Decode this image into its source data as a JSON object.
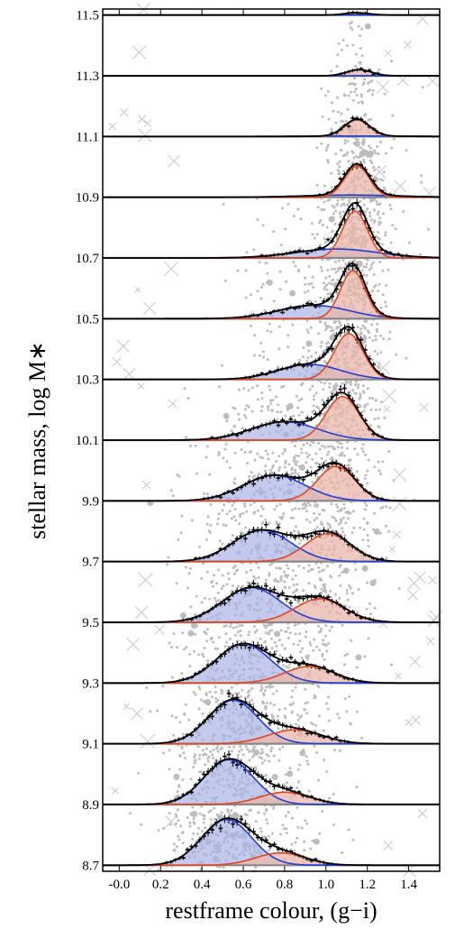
{
  "chart_data": {
    "type": "area",
    "xlabel": "restframe colour, (g−i)",
    "ylabel": "stellar mass, log M∗",
    "xlim": [
      -0.08,
      1.55
    ],
    "ylim": [
      8.68,
      11.52
    ],
    "x_ticks": [
      "-0.0",
      "0.2",
      "0.4",
      "0.6",
      "0.8",
      "1.0",
      "1.2",
      "1.4"
    ],
    "x_tick_values": [
      0.0,
      0.2,
      0.4,
      0.6,
      0.8,
      1.0,
      1.2,
      1.4
    ],
    "y_ticks": [
      "8.7",
      "8.9",
      "9.1",
      "9.3",
      "9.5",
      "9.7",
      "9.9",
      "10.1",
      "10.3",
      "10.5",
      "10.7",
      "10.9",
      "11.1",
      "11.3",
      "11.5"
    ],
    "y_tick_values": [
      8.7,
      8.9,
      9.1,
      9.3,
      9.5,
      9.7,
      9.9,
      10.1,
      10.3,
      10.5,
      10.7,
      10.9,
      11.1,
      11.3,
      11.5
    ],
    "colors": {
      "blue_population": "#1f3fd6",
      "red_population": "#e8431f",
      "total_fit": "#000000",
      "blue_fill": "#aab3e6",
      "red_fill": "#eab7aa",
      "scatter_points": "#bdbdbd",
      "baseline": "#888888"
    },
    "mass_bins": [
      {
        "base": 8.7,
        "blue": {
          "mu": 0.52,
          "sigma": 0.12,
          "amp": 0.82
        },
        "red": {
          "mu": 0.78,
          "sigma": 0.12,
          "amp": 0.22
        }
      },
      {
        "base": 8.9,
        "blue": {
          "mu": 0.53,
          "sigma": 0.12,
          "amp": 0.8
        },
        "red": {
          "mu": 0.8,
          "sigma": 0.12,
          "amp": 0.22
        }
      },
      {
        "base": 9.1,
        "blue": {
          "mu": 0.55,
          "sigma": 0.12,
          "amp": 0.78
        },
        "red": {
          "mu": 0.85,
          "sigma": 0.13,
          "amp": 0.25
        }
      },
      {
        "base": 9.3,
        "blue": {
          "mu": 0.6,
          "sigma": 0.13,
          "amp": 0.7
        },
        "red": {
          "mu": 0.92,
          "sigma": 0.12,
          "amp": 0.3
        }
      },
      {
        "base": 9.5,
        "blue": {
          "mu": 0.64,
          "sigma": 0.14,
          "amp": 0.62
        },
        "red": {
          "mu": 0.97,
          "sigma": 0.12,
          "amp": 0.42
        }
      },
      {
        "base": 9.7,
        "blue": {
          "mu": 0.69,
          "sigma": 0.14,
          "amp": 0.56
        },
        "red": {
          "mu": 1.01,
          "sigma": 0.11,
          "amp": 0.5
        }
      },
      {
        "base": 9.9,
        "blue": {
          "mu": 0.75,
          "sigma": 0.15,
          "amp": 0.46
        },
        "red": {
          "mu": 1.05,
          "sigma": 0.09,
          "amp": 0.62
        }
      },
      {
        "base": 10.1,
        "blue": {
          "mu": 0.8,
          "sigma": 0.16,
          "amp": 0.33
        },
        "red": {
          "mu": 1.08,
          "sigma": 0.08,
          "amp": 0.78
        }
      },
      {
        "base": 10.3,
        "blue": {
          "mu": 0.92,
          "sigma": 0.15,
          "amp": 0.27
        },
        "red": {
          "mu": 1.11,
          "sigma": 0.07,
          "amp": 0.82
        }
      },
      {
        "base": 10.5,
        "blue": {
          "mu": 0.94,
          "sigma": 0.17,
          "amp": 0.24
        },
        "red": {
          "mu": 1.13,
          "sigma": 0.06,
          "amp": 0.86
        }
      },
      {
        "base": 10.7,
        "blue": {
          "mu": 1.05,
          "sigma": 0.2,
          "amp": 0.16
        },
        "red": {
          "mu": 1.14,
          "sigma": 0.06,
          "amp": 0.84
        }
      },
      {
        "base": 10.9,
        "blue": {
          "mu": 1.12,
          "sigma": 0.22,
          "amp": 0.04
        },
        "red": {
          "mu": 1.15,
          "sigma": 0.06,
          "amp": 0.56
        }
      },
      {
        "base": 11.1,
        "blue": {
          "mu": 1.15,
          "sigma": 0.2,
          "amp": 0.01
        },
        "red": {
          "mu": 1.15,
          "sigma": 0.06,
          "amp": 0.3
        }
      },
      {
        "base": 11.3,
        "blue": {
          "mu": 1.15,
          "sigma": 0.2,
          "amp": 0.0
        },
        "red": {
          "mu": 1.16,
          "sigma": 0.06,
          "amp": 0.11
        }
      },
      {
        "base": 11.5,
        "blue": {
          "mu": 1.15,
          "sigma": 0.2,
          "amp": 0.0
        },
        "red": {
          "mu": 1.15,
          "sigma": 0.06,
          "amp": 0.04
        }
      }
    ]
  }
}
